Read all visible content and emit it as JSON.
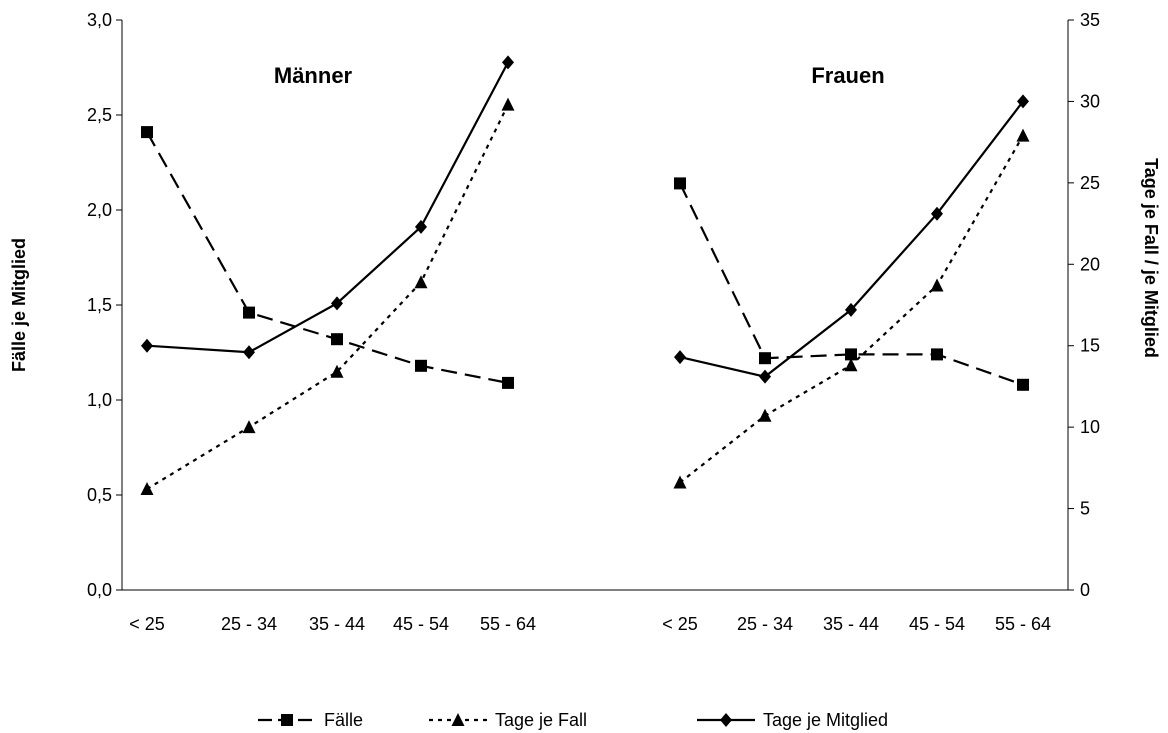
{
  "chart_data": {
    "type": "line",
    "categories": [
      "< 25",
      "25 - 34",
      "35 - 44",
      "45 - 54",
      "55 - 64"
    ],
    "ylabel": "Fälle je Mitglied",
    "y2label": "Tage je Fall / je Mitglied",
    "ylim": [
      0,
      3.0
    ],
    "y2lim": [
      0,
      35
    ],
    "y_ticks": [
      "0,0",
      "0,5",
      "1,0",
      "1,5",
      "2,0",
      "2,5",
      "3,0"
    ],
    "y2_ticks": [
      "0",
      "5",
      "10",
      "15",
      "20",
      "25",
      "30",
      "35"
    ],
    "grid": false,
    "legend_position": "bottom",
    "panels": [
      {
        "title": "Männer",
        "series": [
          {
            "name": "Fälle",
            "axis": "left",
            "style": "dashed",
            "marker": "square",
            "values": [
              2.41,
              1.46,
              1.32,
              1.18,
              1.09
            ]
          },
          {
            "name": "Tage je Fall",
            "axis": "right",
            "style": "dotted",
            "marker": "triangle",
            "values": [
              6.2,
              10.0,
              13.4,
              18.9,
              29.8
            ]
          },
          {
            "name": "Tage je Mitglied",
            "axis": "right",
            "style": "solid",
            "marker": "diamond",
            "values": [
              15.0,
              14.6,
              17.6,
              22.3,
              32.4
            ]
          }
        ]
      },
      {
        "title": "Frauen",
        "series": [
          {
            "name": "Fälle",
            "axis": "left",
            "style": "dashed",
            "marker": "square",
            "values": [
              2.14,
              1.22,
              1.24,
              1.24,
              1.08
            ]
          },
          {
            "name": "Tage je Fall",
            "axis": "right",
            "style": "dotted",
            "marker": "triangle",
            "values": [
              6.6,
              10.7,
              13.8,
              18.7,
              27.9
            ]
          },
          {
            "name": "Tage je Mitglied",
            "axis": "right",
            "style": "solid",
            "marker": "diamond",
            "values": [
              14.3,
              13.1,
              17.2,
              23.1,
              30.0
            ]
          }
        ]
      }
    ]
  }
}
